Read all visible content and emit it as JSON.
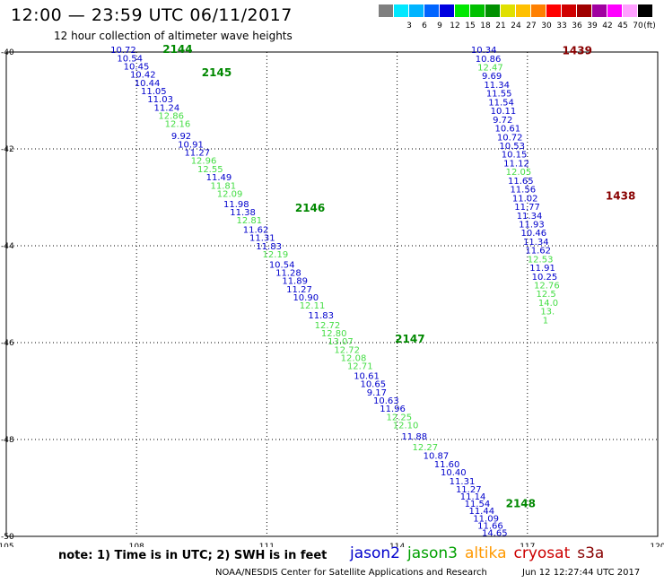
{
  "title": "12:00 — 23:59 UTC 06/11/2017",
  "subtitle": "12 hour collection of altimeter wave heights",
  "colorbar": {
    "unit_label": "(ft)",
    "swatches": [
      {
        "label": "",
        "color": "#7f7f7f"
      },
      {
        "label": "3",
        "color": "#00e8ff"
      },
      {
        "label": "6",
        "color": "#00b4ff"
      },
      {
        "label": "9",
        "color": "#0064ff"
      },
      {
        "label": "12",
        "color": "#0000e0"
      },
      {
        "label": "15",
        "color": "#00e800"
      },
      {
        "label": "18",
        "color": "#00c000"
      },
      {
        "label": "21",
        "color": "#009000"
      },
      {
        "label": "24",
        "color": "#e0e000"
      },
      {
        "label": "27",
        "color": "#ffc000"
      },
      {
        "label": "30",
        "color": "#ff8000"
      },
      {
        "label": "33",
        "color": "#ff0000"
      },
      {
        "label": "36",
        "color": "#d00000"
      },
      {
        "label": "39",
        "color": "#a00000"
      },
      {
        "label": "42",
        "color": "#a000a0"
      },
      {
        "label": "45",
        "color": "#ff00ff"
      },
      {
        "label": "70",
        "color": "#ffa0ff"
      },
      {
        "label": "",
        "color": "#000000"
      }
    ]
  },
  "note": "note: 1) Time is in UTC; 2) SWH is in feet",
  "legend": [
    {
      "name": "jason2",
      "color": "#0000cc"
    },
    {
      "name": "jason3",
      "color": "#00a000"
    },
    {
      "name": "altika",
      "color": "#ff9900"
    },
    {
      "name": "cryosat",
      "color": "#cc0000"
    },
    {
      "name": "s3a",
      "color": "#880000"
    }
  ],
  "footer": "NOAA/NESDIS Center for Satellite Applications and Research",
  "footer_date": "Jun 12 12:27:44 UTC 2017",
  "chart_data": {
    "type": "scatter",
    "xlim": [
      105,
      120
    ],
    "ylim": [
      -50,
      -40
    ],
    "x_ticks": [
      "105",
      "108",
      "111",
      "114",
      "117",
      "120"
    ],
    "y_ticks": [
      "-40",
      "-42",
      "-44",
      "-46",
      "-48",
      "-50"
    ],
    "grid": true,
    "colors": {
      "blue": "#0000cc",
      "light_green": "#44dd44",
      "dark_green": "#008800",
      "maroon": "#880000"
    },
    "track_labels": [
      {
        "text": "2144",
        "x": 108.6,
        "y": -40.02,
        "color": "dark_green"
      },
      {
        "text": "2145",
        "x": 109.5,
        "y": -40.5,
        "color": "dark_green"
      },
      {
        "text": "2146",
        "x": 111.65,
        "y": -43.3,
        "color": "dark_green"
      },
      {
        "text": "2147",
        "x": 113.95,
        "y": -46.0,
        "color": "dark_green"
      },
      {
        "text": "2148",
        "x": 116.5,
        "y": -49.4,
        "color": "dark_green"
      },
      {
        "text": "1439",
        "x": 117.8,
        "y": -40.05,
        "color": "maroon"
      },
      {
        "text": "1438",
        "x": 118.8,
        "y": -43.05,
        "color": "maroon"
      }
    ],
    "points": [
      {
        "v": "10.72",
        "x": 107.4,
        "y": -40.02,
        "c": "blue"
      },
      {
        "v": "10.54",
        "x": 107.55,
        "y": -40.19,
        "c": "blue"
      },
      {
        "v": "10.45",
        "x": 107.7,
        "y": -40.36,
        "c": "blue"
      },
      {
        "v": "10.42",
        "x": 107.85,
        "y": -40.53,
        "c": "blue"
      },
      {
        "v": "10.44",
        "x": 107.95,
        "y": -40.7,
        "c": "blue"
      },
      {
        "v": "11.05",
        "x": 108.1,
        "y": -40.87,
        "c": "blue"
      },
      {
        "v": "11.03",
        "x": 108.25,
        "y": -41.04,
        "c": "blue"
      },
      {
        "v": "11.24",
        "x": 108.4,
        "y": -41.21,
        "c": "blue"
      },
      {
        "v": "12.86",
        "x": 108.5,
        "y": -41.38,
        "c": "light_green"
      },
      {
        "v": "12.16",
        "x": 108.65,
        "y": -41.55,
        "c": "light_green"
      },
      {
        "v": "9.92",
        "x": 108.8,
        "y": -41.8,
        "c": "blue"
      },
      {
        "v": "10.91",
        "x": 108.95,
        "y": -41.97,
        "c": "blue"
      },
      {
        "v": "11.27",
        "x": 109.1,
        "y": -42.14,
        "c": "blue"
      },
      {
        "v": "12.96",
        "x": 109.25,
        "y": -42.31,
        "c": "light_green"
      },
      {
        "v": "12.55",
        "x": 109.4,
        "y": -42.48,
        "c": "light_green"
      },
      {
        "v": "11.49",
        "x": 109.6,
        "y": -42.65,
        "c": "blue"
      },
      {
        "v": "11.81",
        "x": 109.7,
        "y": -42.82,
        "c": "light_green"
      },
      {
        "v": "12.09",
        "x": 109.85,
        "y": -42.99,
        "c": "light_green"
      },
      {
        "v": "11.98",
        "x": 110.0,
        "y": -43.2,
        "c": "blue"
      },
      {
        "v": "11.38",
        "x": 110.15,
        "y": -43.37,
        "c": "blue"
      },
      {
        "v": "12.81",
        "x": 110.3,
        "y": -43.54,
        "c": "light_green"
      },
      {
        "v": "11.62",
        "x": 110.45,
        "y": -43.73,
        "c": "blue"
      },
      {
        "v": "11.31",
        "x": 110.6,
        "y": -43.9,
        "c": "blue"
      },
      {
        "v": "11.83",
        "x": 110.75,
        "y": -44.07,
        "c": "blue"
      },
      {
        "v": "12.19",
        "x": 110.9,
        "y": -44.24,
        "c": "light_green"
      },
      {
        "v": "10.54",
        "x": 111.05,
        "y": -44.45,
        "c": "blue"
      },
      {
        "v": "11.28",
        "x": 111.2,
        "y": -44.62,
        "c": "blue"
      },
      {
        "v": "11.89",
        "x": 111.35,
        "y": -44.79,
        "c": "blue"
      },
      {
        "v": "11.27",
        "x": 111.45,
        "y": -44.96,
        "c": "blue"
      },
      {
        "v": "10.90",
        "x": 111.6,
        "y": -45.13,
        "c": "blue"
      },
      {
        "v": "12.11",
        "x": 111.75,
        "y": -45.3,
        "c": "light_green"
      },
      {
        "v": "11.83",
        "x": 111.95,
        "y": -45.5,
        "c": "blue"
      },
      {
        "v": "12.72",
        "x": 112.1,
        "y": -45.7,
        "c": "light_green"
      },
      {
        "v": "12.80",
        "x": 112.25,
        "y": -45.87,
        "c": "light_green"
      },
      {
        "v": "13.07",
        "x": 112.4,
        "y": -46.04,
        "c": "light_green"
      },
      {
        "v": "12.72",
        "x": 112.55,
        "y": -46.21,
        "c": "light_green"
      },
      {
        "v": "12.08",
        "x": 112.7,
        "y": -46.38,
        "c": "light_green"
      },
      {
        "v": "12.71",
        "x": 112.85,
        "y": -46.55,
        "c": "light_green"
      },
      {
        "v": "10.61",
        "x": 113.0,
        "y": -46.75,
        "c": "blue"
      },
      {
        "v": "10.65",
        "x": 113.15,
        "y": -46.92,
        "c": "blue"
      },
      {
        "v": "9.17",
        "x": 113.3,
        "y": -47.09,
        "c": "blue"
      },
      {
        "v": "10.63",
        "x": 113.45,
        "y": -47.26,
        "c": "blue"
      },
      {
        "v": "11.96",
        "x": 113.6,
        "y": -47.43,
        "c": "blue"
      },
      {
        "v": "12.25",
        "x": 113.75,
        "y": -47.6,
        "c": "light_green"
      },
      {
        "v": "12.10",
        "x": 113.9,
        "y": -47.77,
        "c": "light_green"
      },
      {
        "v": "11.88",
        "x": 114.1,
        "y": -48.0,
        "c": "blue"
      },
      {
        "v": "12.27",
        "x": 114.35,
        "y": -48.22,
        "c": "light_green"
      },
      {
        "v": "10.87",
        "x": 114.6,
        "y": -48.4,
        "c": "blue"
      },
      {
        "v": "11.60",
        "x": 114.85,
        "y": -48.57,
        "c": "blue"
      },
      {
        "v": "10.40",
        "x": 115.0,
        "y": -48.74,
        "c": "blue"
      },
      {
        "v": "11.31",
        "x": 115.2,
        "y": -48.93,
        "c": "blue"
      },
      {
        "v": "11.27",
        "x": 115.35,
        "y": -49.09,
        "c": "blue"
      },
      {
        "v": "11.14",
        "x": 115.45,
        "y": -49.24,
        "c": "blue"
      },
      {
        "v": "11.54",
        "x": 115.55,
        "y": -49.39,
        "c": "blue"
      },
      {
        "v": "11.44",
        "x": 115.65,
        "y": -49.54,
        "c": "blue"
      },
      {
        "v": "11.09",
        "x": 115.75,
        "y": -49.69,
        "c": "blue"
      },
      {
        "v": "11.66",
        "x": 115.85,
        "y": -49.84,
        "c": "blue"
      },
      {
        "v": "14.65",
        "x": 115.95,
        "y": -49.99,
        "c": "blue"
      },
      {
        "v": "10.34",
        "x": 115.7,
        "y": -40.02,
        "c": "blue"
      },
      {
        "v": "10.86",
        "x": 115.8,
        "y": -40.2,
        "c": "blue"
      },
      {
        "v": "12.47",
        "x": 115.85,
        "y": -40.38,
        "c": "light_green"
      },
      {
        "v": "9.69",
        "x": 115.95,
        "y": -40.56,
        "c": "blue"
      },
      {
        "v": "11.34",
        "x": 116.0,
        "y": -40.74,
        "c": "blue"
      },
      {
        "v": "11.55",
        "x": 116.05,
        "y": -40.92,
        "c": "blue"
      },
      {
        "v": "11.54",
        "x": 116.1,
        "y": -41.1,
        "c": "blue"
      },
      {
        "v": "10.11",
        "x": 116.15,
        "y": -41.28,
        "c": "blue"
      },
      {
        "v": "9.72",
        "x": 116.2,
        "y": -41.46,
        "c": "blue"
      },
      {
        "v": "10.61",
        "x": 116.25,
        "y": -41.64,
        "c": "blue"
      },
      {
        "v": "10.72",
        "x": 116.3,
        "y": -41.82,
        "c": "blue"
      },
      {
        "v": "10.53",
        "x": 116.35,
        "y": -42.0,
        "c": "blue"
      },
      {
        "v": "10.15",
        "x": 116.4,
        "y": -42.18,
        "c": "blue"
      },
      {
        "v": "11.12",
        "x": 116.45,
        "y": -42.36,
        "c": "blue"
      },
      {
        "v": "12.05",
        "x": 116.5,
        "y": -42.54,
        "c": "light_green"
      },
      {
        "v": "11.65",
        "x": 116.55,
        "y": -42.72,
        "c": "blue"
      },
      {
        "v": "11.56",
        "x": 116.6,
        "y": -42.9,
        "c": "blue"
      },
      {
        "v": "11.02",
        "x": 116.65,
        "y": -43.08,
        "c": "blue"
      },
      {
        "v": "11.77",
        "x": 116.7,
        "y": -43.26,
        "c": "blue"
      },
      {
        "v": "11.34",
        "x": 116.75,
        "y": -43.44,
        "c": "blue"
      },
      {
        "v": "11.93",
        "x": 116.8,
        "y": -43.62,
        "c": "blue"
      },
      {
        "v": "10.46",
        "x": 116.85,
        "y": -43.8,
        "c": "blue"
      },
      {
        "v": "11.34",
        "x": 116.9,
        "y": -43.98,
        "c": "blue"
      },
      {
        "v": "11.62",
        "x": 116.95,
        "y": -44.16,
        "c": "blue"
      },
      {
        "v": "12.53",
        "x": 117.0,
        "y": -44.34,
        "c": "light_green"
      },
      {
        "v": "11.91",
        "x": 117.05,
        "y": -44.52,
        "c": "blue"
      },
      {
        "v": "10.25",
        "x": 117.1,
        "y": -44.7,
        "c": "blue"
      },
      {
        "v": "12.76",
        "x": 117.15,
        "y": -44.88,
        "c": "light_green"
      },
      {
        "v": "12.5",
        "x": 117.2,
        "y": -45.06,
        "c": "light_green"
      },
      {
        "v": "14.0",
        "x": 117.25,
        "y": -45.24,
        "c": "light_green"
      },
      {
        "v": "13.",
        "x": 117.3,
        "y": -45.42,
        "c": "light_green"
      },
      {
        "v": "1",
        "x": 117.35,
        "y": -45.6,
        "c": "light_green"
      }
    ]
  }
}
